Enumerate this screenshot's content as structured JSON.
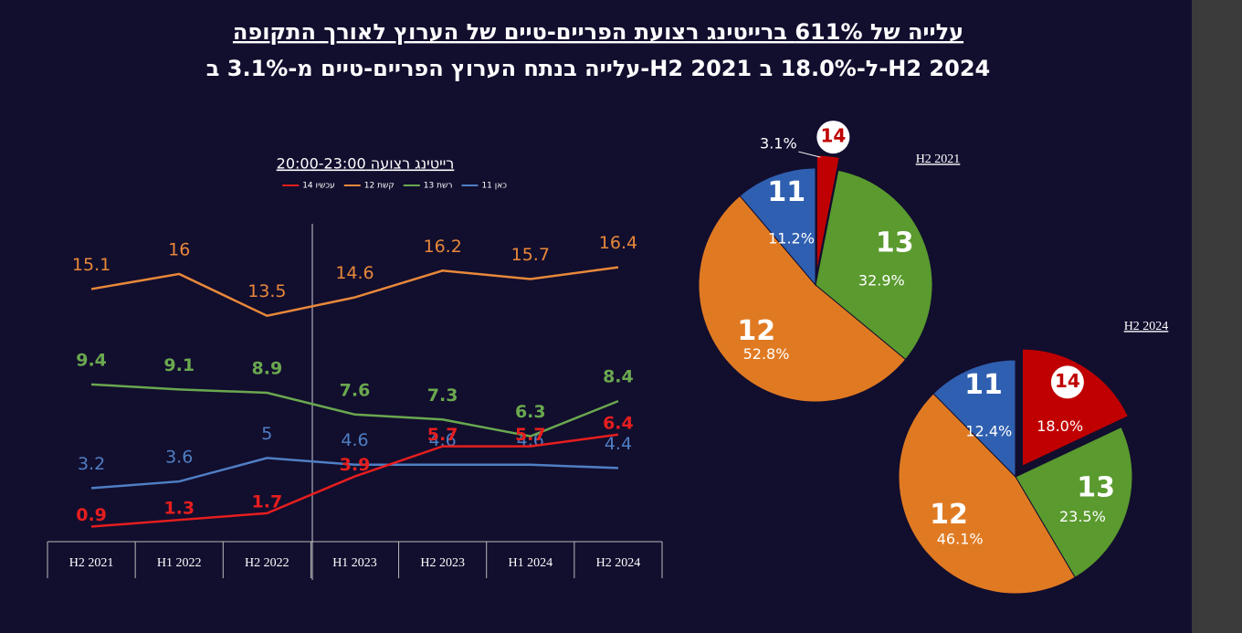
{
  "header": {
    "title": "עלייה של 611% ברייטינג רצועת הפריים-טיים של הערוץ לאורך התקופה",
    "subtitle": "עלייה בנתח הערוץ הפריים-טיים מ-3.1% ב-H2 2021 ל-18.0% ב-H2 2024"
  },
  "chart_data": [
    {
      "type": "line",
      "title": "רייטינג רצועה 20:00-23:00",
      "categories": [
        "H2 2021",
        "H1 2022",
        "H2 2022",
        "H1 2023",
        "H2 2023",
        "H1 2024",
        "H2 2024"
      ],
      "ylim": [
        0,
        19
      ],
      "series": [
        {
          "name": "כאן 11",
          "color": "#4f7fc4",
          "values": [
            3.2,
            3.6,
            5,
            4.6,
            4.6,
            4.6,
            4.4
          ]
        },
        {
          "name": "רשת 13",
          "color": "#6aa84f",
          "values": [
            9.4,
            9.1,
            8.9,
            7.6,
            7.3,
            6.3,
            8.4
          ]
        },
        {
          "name": "קשת 12",
          "color": "#e8883a",
          "values": [
            15.1,
            16,
            13.5,
            14.6,
            16.2,
            15.7,
            16.4
          ]
        },
        {
          "name": "עכשיו 14",
          "color": "#e61e1e",
          "values": [
            0.9,
            1.3,
            1.7,
            3.9,
            5.7,
            5.7,
            6.4
          ]
        }
      ]
    },
    {
      "type": "pie",
      "title": "H2 2021",
      "categories": [
        "14",
        "13",
        "12",
        "11"
      ],
      "values": [
        3.1,
        32.9,
        52.8,
        11.2
      ],
      "value_labels": [
        "3.1%",
        "32.9%",
        "52.8%",
        "11.2%"
      ],
      "colors": [
        "#c00000",
        "#5a9a2e",
        "#e07a22",
        "#2f5fb0"
      ]
    },
    {
      "type": "pie",
      "title": "H2 2024",
      "categories": [
        "14",
        "13",
        "12",
        "11"
      ],
      "values": [
        18.0,
        23.5,
        46.1,
        12.4
      ],
      "value_labels": [
        "18.0%",
        "23.5%",
        "46.1%",
        "12.4%"
      ],
      "colors": [
        "#c00000",
        "#5a9a2e",
        "#e07a22",
        "#2f5fb0"
      ]
    }
  ]
}
